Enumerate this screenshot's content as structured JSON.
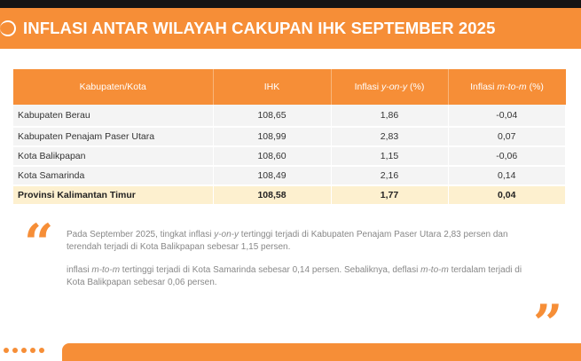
{
  "header": {
    "title": "INFLASI ANTAR WILAYAH CAKUPAN IHK SEPTEMBER 2025",
    "accent": "#f68e37"
  },
  "table": {
    "columns": [
      {
        "prefix": "Kabupaten/Kota",
        "italic": "",
        "suffix": ""
      },
      {
        "prefix": "IHK",
        "italic": "",
        "suffix": ""
      },
      {
        "prefix": "Inflasi ",
        "italic": "y-on-y",
        "suffix": " (%)"
      },
      {
        "prefix": "Inflasi ",
        "italic": "m-to-m",
        "suffix": " (%)"
      }
    ],
    "rows": [
      [
        "Kabupaten Berau",
        "108,65",
        "1,86",
        "-0,04"
      ],
      [
        "Kabupaten Penajam Paser Utara",
        "108,99",
        "2,83",
        "0,07"
      ],
      [
        "Kota Balikpapan",
        "108,60",
        "1,15",
        "-0,06"
      ],
      [
        "Kota Samarinda",
        "108,49",
        "2,16",
        "0,14"
      ]
    ],
    "total": [
      "Provinsi Kalimantan Timur",
      "108,58",
      "1,77",
      "0,04"
    ]
  },
  "summary": {
    "p1": {
      "a": "Pada September 2025, tingkat inflasi ",
      "b": "y-on-y",
      "c": " tertinggi terjadi di Kabupaten Penajam Paser Utara 2,83 persen dan terendah terjadi di Kota Balikpapan sebesar 1,15 persen."
    },
    "p2": {
      "a": "inflasi ",
      "b": "m-to-m",
      "c": " tertinggi terjadi di Kota Samarinda sebesar 0,14 persen. Sebaliknya, deflasi ",
      "d": "m-to-m",
      "e": " terdalam terjadi di Kota Balikpapan sebesar 0,06 persen."
    }
  },
  "quotes": {
    "open": "“",
    "close": "”"
  }
}
